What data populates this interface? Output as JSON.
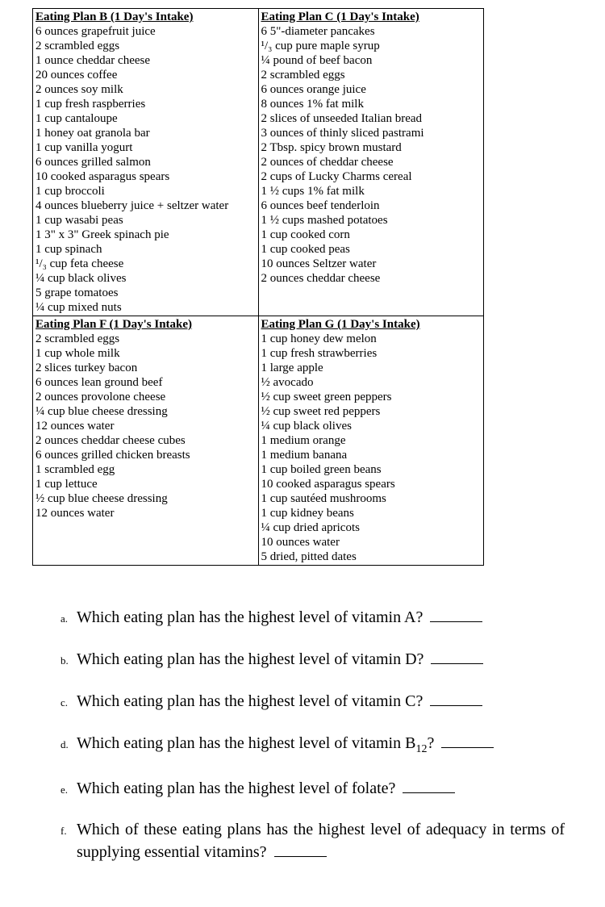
{
  "plans": {
    "row1": {
      "left": {
        "title": "Eating Plan B (1 Day's Intake)",
        "items": [
          "6 ounces grapefruit juice",
          "2 scrambled eggs",
          "1 ounce cheddar cheese",
          "20 ounces coffee",
          "2 ounces soy milk",
          "1 cup fresh raspberries",
          "1 cup cantaloupe",
          "1 honey oat granola bar",
          "1 cup vanilla yogurt",
          "6 ounces grilled salmon",
          "10 cooked asparagus spears",
          "1 cup broccoli",
          "4 ounces blueberry juice + seltzer water",
          "1 cup wasabi peas",
          "1 3\" x 3\" Greek spinach pie",
          "1 cup spinach",
          "¹/₃ cup feta cheese",
          "¼ cup black olives",
          "5 grape tomatoes",
          "¼ cup mixed nuts"
        ]
      },
      "right": {
        "title": "Eating Plan C (1 Day's Intake)",
        "items": [
          "6 5\"-diameter pancakes",
          "¹/₃ cup pure maple syrup",
          "¼ pound of beef bacon",
          "2 scrambled eggs",
          "6 ounces orange juice",
          "8 ounces 1% fat milk",
          "2 slices of unseeded Italian bread",
          "3 ounces of thinly sliced pastrami",
          "2 Tbsp. spicy brown mustard",
          "2 ounces of cheddar cheese",
          "2 cups of Lucky Charms cereal",
          "1 ½ cups 1% fat milk",
          "6 ounces beef tenderloin",
          "1 ½ cups mashed potatoes",
          "1 cup cooked corn",
          "1 cup cooked peas",
          "10 ounces Seltzer water",
          "2 ounces cheddar cheese"
        ]
      }
    },
    "row2": {
      "left": {
        "title": "Eating Plan F (1 Day's Intake)",
        "items": [
          "2 scrambled eggs",
          "1 cup whole milk",
          "2 slices turkey bacon",
          "6 ounces lean ground beef",
          "2 ounces provolone cheese",
          "¼ cup blue cheese dressing",
          "12 ounces water",
          "2 ounces cheddar cheese cubes",
          "6 ounces grilled chicken breasts",
          "1 scrambled egg",
          "1 cup lettuce",
          "½ cup blue cheese dressing",
          "12 ounces water"
        ]
      },
      "right": {
        "title": "Eating Plan G (1 Day's Intake)",
        "items": [
          "1 cup honey dew melon",
          "1 cup fresh strawberries",
          "1 large apple",
          "½ avocado",
          "½ cup sweet green peppers",
          "½ cup sweet red peppers",
          "¼ cup black olives",
          "1 medium orange",
          "1 medium banana",
          "1 cup boiled green beans",
          "10 cooked asparagus spears",
          "1 cup sautéed mushrooms",
          "1 cup kidney beans",
          "¼ cup dried apricots",
          "10 ounces water",
          "5 dried, pitted dates"
        ]
      }
    }
  },
  "questions": {
    "a": {
      "letter": "a.",
      "text": "Which eating plan has the highest level of vitamin A?"
    },
    "b": {
      "letter": "b.",
      "text": "Which eating plan has the highest level of vitamin D?"
    },
    "c": {
      "letter": "c.",
      "text": "Which eating plan has the highest level of vitamin C?"
    },
    "d": {
      "letter": "d.",
      "textPrefix": "Which eating plan has the highest level of vitamin B",
      "textSuffix": "?",
      "sub": "12"
    },
    "e": {
      "letter": "e.",
      "text": "Which eating plan has the highest level of folate?"
    },
    "f": {
      "letter": "f.",
      "text": "Which of these eating plans has the highest level of adequacy in terms of supplying essential vitamins?"
    }
  }
}
